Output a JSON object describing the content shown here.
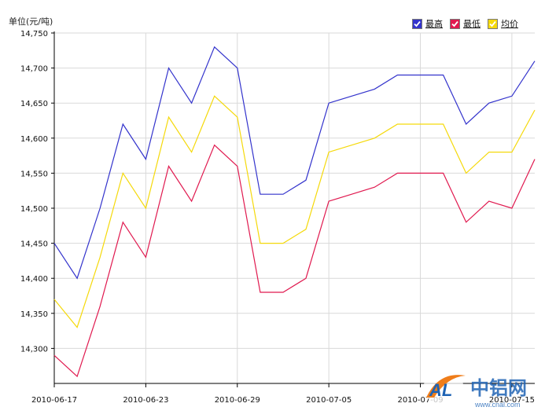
{
  "unit_label": "单位(元/吨)",
  "legend": [
    {
      "label": "最高",
      "color": "#3333cc"
    },
    {
      "label": "最低",
      "color": "#e0194f"
    },
    {
      "label": "均价",
      "color": "#f5d90a"
    }
  ],
  "watermark": {
    "logo_text": "AL",
    "brand_text": "中铝网",
    "url_text": "www.cnal.com"
  },
  "chart_data": {
    "type": "line",
    "title": "",
    "ylabel": "单位(元/吨)",
    "xlabel": "",
    "ylim": [
      14250,
      14750
    ],
    "y_ticks": [
      "14,300",
      "14,350",
      "14,400",
      "14,450",
      "14,500",
      "14,550",
      "14,600",
      "14,650",
      "14,700",
      "14,750"
    ],
    "y_tick_values": [
      14300,
      14350,
      14400,
      14450,
      14500,
      14550,
      14600,
      14650,
      14700,
      14750
    ],
    "grid": true,
    "legend_position": "top-right",
    "x": [
      "2010-06-17",
      "2010-06-18",
      "2010-06-21",
      "2010-06-22",
      "2010-06-23",
      "2010-06-24",
      "2010-06-25",
      "2010-06-28",
      "2010-06-29",
      "2010-06-30",
      "2010-07-01",
      "2010-07-02",
      "2010-07-05",
      "2010-07-06",
      "2010-07-07",
      "2010-07-08",
      "2010-07-09",
      "2010-07-12",
      "2010-07-13",
      "2010-07-14",
      "2010-07-15",
      "2010-07-16"
    ],
    "x_tick_labels": [
      "2010-06-17",
      "2010-06-23",
      "2010-06-29",
      "2010-07-05",
      "2010-07-09",
      "2010-07-15"
    ],
    "x_tick_indices": [
      0,
      4,
      8,
      12,
      16,
      20
    ],
    "series": [
      {
        "name": "最高",
        "color": "#3333cc",
        "values": [
          14450,
          14400,
          14500,
          14620,
          14570,
          14700,
          14650,
          14730,
          14700,
          14520,
          14520,
          14540,
          14650,
          14660,
          14670,
          14690,
          14690,
          14690,
          14620,
          14650,
          14660,
          14710
        ]
      },
      {
        "name": "最低",
        "color": "#e0194f",
        "values": [
          14290,
          14260,
          14360,
          14480,
          14430,
          14560,
          14510,
          14590,
          14560,
          14380,
          14380,
          14400,
          14510,
          14520,
          14530,
          14550,
          14550,
          14550,
          14480,
          14510,
          14500,
          14570
        ]
      },
      {
        "name": "均价",
        "color": "#f5d90a",
        "values": [
          14370,
          14330,
          14430,
          14550,
          14500,
          14630,
          14580,
          14660,
          14630,
          14450,
          14450,
          14470,
          14580,
          14590,
          14600,
          14620,
          14620,
          14620,
          14550,
          14580,
          14580,
          14640
        ]
      }
    ]
  }
}
